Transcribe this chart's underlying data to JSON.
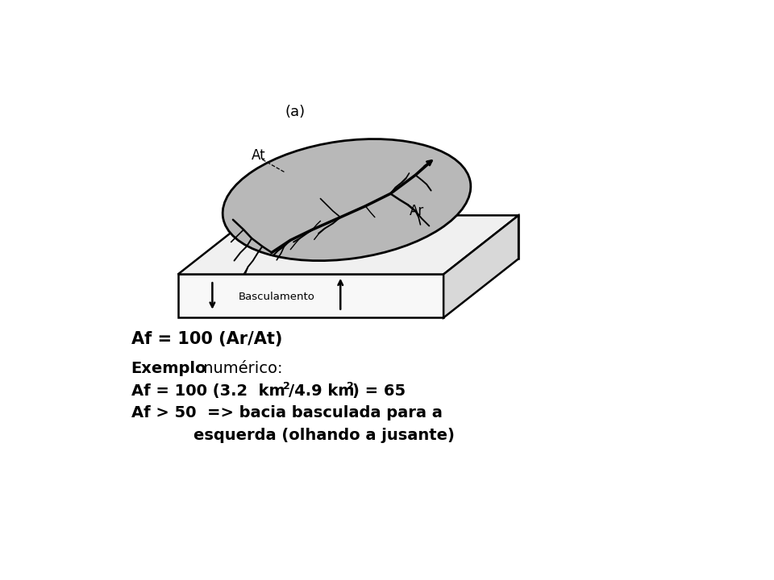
{
  "bg_color": "#ffffff",
  "text_color": "#000000",
  "label_a": "(a)",
  "label_At": "At",
  "label_Ar": "Ar",
  "label_basculamento": "Basculamento",
  "box_face_color": "#f0f0f0",
  "box_right_color": "#d8d8d8",
  "box_top_color": "#ffffff",
  "box_edge_color": "#000000",
  "ellipse_color": "#b8b8b8",
  "river_color": "#000000",
  "formula": "Af = 100 (Ar/At)"
}
